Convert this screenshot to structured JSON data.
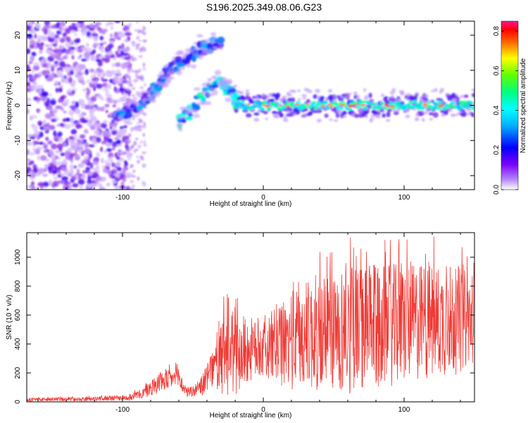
{
  "title": "S196.2025.349.08.06.G23",
  "chart_data": [
    {
      "type": "heatmap",
      "name": "spectrogram",
      "xlabel": "Height of straight line (km)",
      "ylabel": "Frequency (Hz)",
      "xlim": [
        -168,
        150
      ],
      "ylim": [
        -24,
        24
      ],
      "x_ticks": [
        -100,
        0,
        100
      ],
      "y_ticks": [
        -20,
        -10,
        0,
        10,
        20
      ],
      "colorbar": {
        "label": "Normalized spectral amplitude",
        "range": [
          0,
          0.85
        ],
        "ticks": [
          0.0,
          0.2,
          0.4,
          0.6,
          0.8
        ],
        "colors": [
          "#ffffff",
          "#8a2be2",
          "#0000ff",
          "#00ffff",
          "#00ff00",
          "#ffff00",
          "#ff0000",
          "#ff1493"
        ]
      },
      "features": [
        {
          "label": "noise",
          "x_range": [
            -168,
            -95
          ],
          "freq_range": [
            -24,
            24
          ],
          "amplitude": 0.12
        },
        {
          "label": "rising-trace",
          "points": [
            [
              -105,
              -3
            ],
            [
              -95,
              -2
            ],
            [
              -85,
              1
            ],
            [
              -78,
              4
            ],
            [
              -72,
              7
            ],
            [
              -66,
              10
            ],
            [
              -60,
              12
            ],
            [
              -52,
              14
            ],
            [
              -45,
              16
            ],
            [
              -38,
              17
            ],
            [
              -30,
              18
            ]
          ],
          "amplitude": 0.25
        },
        {
          "label": "descending-trace",
          "points": [
            [
              -60,
              -5
            ],
            [
              -50,
              -1
            ],
            [
              -40,
              4
            ],
            [
              -30,
              6
            ],
            [
              -22,
              3
            ],
            [
              -15,
              0
            ]
          ],
          "amplitude": 0.35
        },
        {
          "label": "steady-tone",
          "freq": 0,
          "x_range": [
            -20,
            150
          ],
          "amplitude": 0.55
        }
      ]
    },
    {
      "type": "line",
      "name": "snr",
      "xlabel": "Height of straight line (km)",
      "ylabel": "SNR (10 * v/v)",
      "xlim": [
        -168,
        150
      ],
      "ylim": [
        0,
        1170
      ],
      "x_ticks": [
        -100,
        0,
        100
      ],
      "y_ticks": [
        0,
        200,
        400,
        600,
        800,
        1000
      ],
      "color": "#ef3b36",
      "envelope": {
        "x": [
          -168,
          -120,
          -95,
          -85,
          -75,
          -65,
          -60,
          -55,
          -45,
          -35,
          -28,
          -20,
          -10,
          0,
          10,
          20,
          30,
          40,
          60,
          80,
          100,
          120,
          140,
          150
        ],
        "mean": [
          15,
          20,
          30,
          60,
          130,
          160,
          170,
          60,
          90,
          240,
          300,
          330,
          360,
          360,
          380,
          420,
          450,
          480,
          500,
          520,
          540,
          560,
          560,
          580
        ],
        "spread": [
          12,
          15,
          20,
          40,
          70,
          70,
          80,
          30,
          60,
          130,
          300,
          300,
          230,
          180,
          260,
          340,
          380,
          420,
          450,
          430,
          420,
          400,
          370,
          300
        ]
      }
    }
  ]
}
